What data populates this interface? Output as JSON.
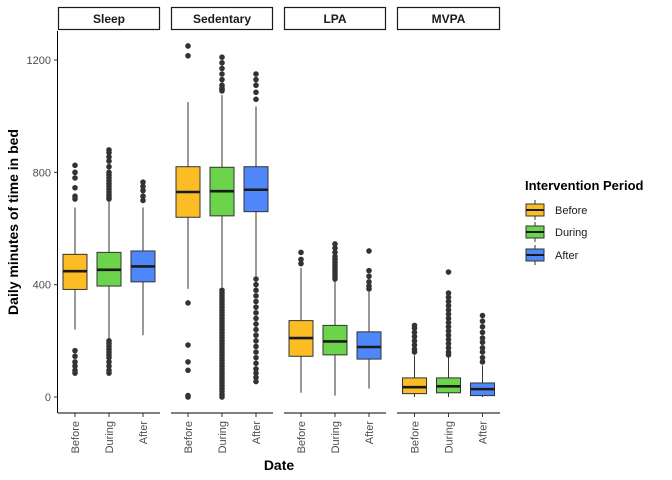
{
  "chart_data": {
    "type": "boxplot",
    "title": "",
    "xlabel": "Date",
    "ylabel": "Daily minutes of time in bed",
    "ylim": [
      -55,
      1310
    ],
    "yticks": [
      0,
      400,
      800,
      1200
    ],
    "categories": [
      "Before",
      "During",
      "After"
    ],
    "legend": {
      "title": "Intervention Period",
      "placement": "right",
      "entries": [
        "Before",
        "During",
        "After"
      ]
    },
    "colors": {
      "Before": "#fbbc24",
      "During": "#6cd44a",
      "After": "#4f87fb"
    },
    "grid": false,
    "facets": [
      {
        "label": "Sleep",
        "boxes": [
          {
            "group": "Before",
            "whisker_low": 240,
            "q1": 383,
            "median": 448,
            "q3": 508,
            "whisker_high": 675,
            "outliers": [
              825,
              800,
              780,
              745,
              715,
              705,
              165,
              145,
              125,
              110,
              95,
              85
            ]
          },
          {
            "group": "During",
            "whisker_low": 205,
            "q1": 395,
            "median": 453,
            "q3": 515,
            "whisker_high": 695,
            "outliers": [
              880,
              870,
              855,
              840,
              820,
              800,
              790,
              780,
              770,
              760,
              750,
              740,
              730,
              720,
              712,
              705,
              200,
              190,
              180,
              170,
              160,
              150,
              140,
              125,
              110,
              95,
              85
            ]
          },
          {
            "group": "After",
            "whisker_low": 220,
            "q1": 410,
            "median": 465,
            "q3": 520,
            "whisker_high": 675,
            "outliers": [
              765,
              750,
              735,
              715,
              700
            ]
          }
        ]
      },
      {
        "label": "Sedentary",
        "boxes": [
          {
            "group": "Before",
            "whisker_low": 385,
            "q1": 640,
            "median": 730,
            "q3": 820,
            "whisker_high": 1050,
            "outliers": [
              1250,
              1215,
              335,
              185,
              125,
              95,
              5,
              0
            ]
          },
          {
            "group": "During",
            "whisker_low": 390,
            "q1": 645,
            "median": 733,
            "q3": 818,
            "whisker_high": 1075,
            "outliers": [
              1210,
              1190,
              1170,
              1150,
              1130,
              1110,
              1100,
              1095,
              1090,
              380,
              370,
              360,
              350,
              340,
              330,
              320,
              310,
              300,
              290,
              280,
              270,
              260,
              250,
              240,
              230,
              220,
              210,
              200,
              190,
              180,
              170,
              160,
              150,
              140,
              130,
              120,
              110,
              100,
              90,
              80,
              70,
              60,
              50,
              40,
              30,
              20,
              10,
              0
            ]
          },
          {
            "group": "After",
            "whisker_low": 430,
            "q1": 660,
            "median": 738,
            "q3": 820,
            "whisker_high": 1035,
            "outliers": [
              1150,
              1130,
              1110,
              1085,
              1060,
              420,
              400,
              380,
              360,
              340,
              320,
              300,
              280,
              260,
              240,
              220,
              200,
              180,
              160,
              140,
              120,
              100,
              85,
              70,
              55
            ]
          }
        ]
      },
      {
        "label": "LPA",
        "boxes": [
          {
            "group": "Before",
            "whisker_low": 15,
            "q1": 145,
            "median": 210,
            "q3": 272,
            "whisker_high": 460,
            "outliers": [
              515,
              490,
              475
            ]
          },
          {
            "group": "During",
            "whisker_low": 5,
            "q1": 150,
            "median": 198,
            "q3": 255,
            "whisker_high": 412,
            "outliers": [
              545,
              530,
              515,
              500,
              490,
              480,
              470,
              460,
              450,
              440,
              430,
              420
            ]
          },
          {
            "group": "After",
            "whisker_low": 30,
            "q1": 135,
            "median": 178,
            "q3": 232,
            "whisker_high": 375,
            "outliers": [
              520,
              450,
              430,
              410,
              395,
              385
            ]
          }
        ]
      },
      {
        "label": "MVPA",
        "boxes": [
          {
            "group": "Before",
            "whisker_low": 0,
            "q1": 12,
            "median": 35,
            "q3": 68,
            "whisker_high": 148,
            "outliers": [
              255,
              245,
              230,
              215,
              200,
              185,
              170,
              160
            ]
          },
          {
            "group": "During",
            "whisker_low": 0,
            "q1": 15,
            "median": 38,
            "q3": 68,
            "whisker_high": 145,
            "outliers": [
              445,
              370,
              355,
              340,
              325,
              310,
              295,
              280,
              265,
              250,
              235,
              220,
              205,
              190,
              175,
              160,
              150
            ]
          },
          {
            "group": "After",
            "whisker_low": 0,
            "q1": 5,
            "median": 28,
            "q3": 50,
            "whisker_high": 112,
            "outliers": [
              290,
              270,
              250,
              230,
              210,
              195,
              175,
              160,
              140,
              125
            ]
          }
        ]
      }
    ]
  }
}
